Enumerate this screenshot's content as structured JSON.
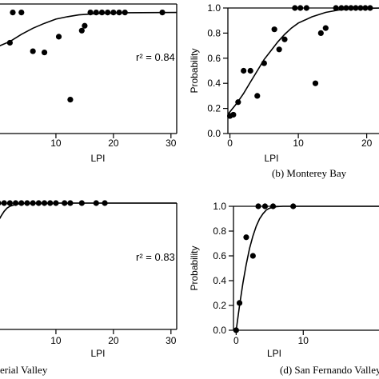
{
  "colors": {
    "ink": "#000000",
    "background": "#ffffff"
  },
  "chart_data": [
    {
      "type": "scatter",
      "panel": "a",
      "caption": "",
      "xlabel": "LPI",
      "ylabel": "",
      "x_ticks": [
        "10",
        "20",
        "30"
      ],
      "y_ticks": [],
      "xlim": [
        0,
        31
      ],
      "ylim": [
        0,
        1.07
      ],
      "annotation": "r² = 0.84",
      "points": [
        {
          "x": -0.5,
          "y": 0.78
        },
        {
          "x": 2.5,
          "y": 1.0
        },
        {
          "x": 4,
          "y": 1.0
        },
        {
          "x": 2,
          "y": 0.75
        },
        {
          "x": 6,
          "y": 0.68
        },
        {
          "x": 8,
          "y": 0.67
        },
        {
          "x": 10.5,
          "y": 0.8
        },
        {
          "x": 12.5,
          "y": 0.28
        },
        {
          "x": 14.5,
          "y": 0.85
        },
        {
          "x": 15,
          "y": 0.89
        },
        {
          "x": 16,
          "y": 1.0
        },
        {
          "x": 17,
          "y": 1.0
        },
        {
          "x": 18,
          "y": 1.0
        },
        {
          "x": 19,
          "y": 1.0
        },
        {
          "x": 20,
          "y": 1.0
        },
        {
          "x": 21,
          "y": 1.0
        },
        {
          "x": 22,
          "y": 1.0
        },
        {
          "x": 28.5,
          "y": 1.0
        }
      ],
      "fit": [
        {
          "x": -1,
          "y": 0.7
        },
        {
          "x": 2,
          "y": 0.76
        },
        {
          "x": 4,
          "y": 0.82
        },
        {
          "x": 6,
          "y": 0.87
        },
        {
          "x": 8,
          "y": 0.91
        },
        {
          "x": 10,
          "y": 0.945
        },
        {
          "x": 12,
          "y": 0.965
        },
        {
          "x": 14,
          "y": 0.98
        },
        {
          "x": 17,
          "y": 0.99
        },
        {
          "x": 22,
          "y": 0.998
        },
        {
          "x": 31,
          "y": 1.0
        }
      ]
    },
    {
      "type": "scatter",
      "panel": "b",
      "caption": "(b) Monterey Bay",
      "xlabel": "LPI",
      "ylabel": "Probability",
      "x_ticks": [
        "0",
        "10",
        "20"
      ],
      "y_ticks": [
        "0.0",
        "0.2",
        "0.4",
        "0.6",
        "0.8",
        "1.0"
      ],
      "xlim": [
        -0.3,
        22.5
      ],
      "ylim": [
        0,
        1.0
      ],
      "annotation": "",
      "points": [
        {
          "x": 0,
          "y": 0.14
        },
        {
          "x": 0.5,
          "y": 0.15
        },
        {
          "x": 1.2,
          "y": 0.25
        },
        {
          "x": 2,
          "y": 0.5
        },
        {
          "x": 3,
          "y": 0.5
        },
        {
          "x": 4,
          "y": 0.3
        },
        {
          "x": 5,
          "y": 0.56
        },
        {
          "x": 6.5,
          "y": 0.83
        },
        {
          "x": 7.2,
          "y": 0.67
        },
        {
          "x": 8,
          "y": 0.75
        },
        {
          "x": 9.5,
          "y": 1.0
        },
        {
          "x": 10.3,
          "y": 1.0
        },
        {
          "x": 11.2,
          "y": 1.0
        },
        {
          "x": 12.5,
          "y": 0.4
        },
        {
          "x": 13.3,
          "y": 0.8
        },
        {
          "x": 14,
          "y": 0.84
        },
        {
          "x": 15.5,
          "y": 1.0
        },
        {
          "x": 16.3,
          "y": 1.0
        },
        {
          "x": 17,
          "y": 1.0
        },
        {
          "x": 17.7,
          "y": 1.0
        },
        {
          "x": 18.4,
          "y": 1.0
        },
        {
          "x": 19.1,
          "y": 1.0
        },
        {
          "x": 19.8,
          "y": 1.0
        },
        {
          "x": 20.5,
          "y": 1.0
        }
      ],
      "fit": [
        {
          "x": -0.2,
          "y": 0.16
        },
        {
          "x": 1,
          "y": 0.24
        },
        {
          "x": 2,
          "y": 0.32
        },
        {
          "x": 3,
          "y": 0.41
        },
        {
          "x": 4,
          "y": 0.5
        },
        {
          "x": 5,
          "y": 0.59
        },
        {
          "x": 6,
          "y": 0.66
        },
        {
          "x": 7,
          "y": 0.73
        },
        {
          "x": 8,
          "y": 0.79
        },
        {
          "x": 9,
          "y": 0.84
        },
        {
          "x": 10,
          "y": 0.88
        },
        {
          "x": 12,
          "y": 0.93
        },
        {
          "x": 14,
          "y": 0.965
        },
        {
          "x": 16,
          "y": 0.985
        },
        {
          "x": 18,
          "y": 0.995
        },
        {
          "x": 22.5,
          "y": 1.0
        }
      ]
    },
    {
      "type": "scatter",
      "panel": "c",
      "caption": "erial Valley",
      "xlabel": "LPI",
      "ylabel": "",
      "x_ticks": [
        "10",
        "20",
        "30"
      ],
      "y_ticks": [],
      "xlim": [
        0,
        31
      ],
      "ylim": [
        0,
        1.0
      ],
      "annotation": "r² = 0.83",
      "points": [
        {
          "x": 0,
          "y": 1.0
        },
        {
          "x": 1,
          "y": 1.0
        },
        {
          "x": 2,
          "y": 1.0
        },
        {
          "x": 3,
          "y": 1.0
        },
        {
          "x": 4,
          "y": 1.0
        },
        {
          "x": 5,
          "y": 1.0
        },
        {
          "x": 6,
          "y": 1.0
        },
        {
          "x": 7,
          "y": 1.0
        },
        {
          "x": 8,
          "y": 1.0
        },
        {
          "x": 9,
          "y": 1.0
        },
        {
          "x": 10,
          "y": 1.0
        },
        {
          "x": 11.5,
          "y": 1.0
        },
        {
          "x": 12.5,
          "y": 1.0
        },
        {
          "x": 14.5,
          "y": 1.0
        },
        {
          "x": 17,
          "y": 1.0
        },
        {
          "x": 18.5,
          "y": 1.0
        }
      ],
      "fit": [
        {
          "x": 0,
          "y": 0.86
        },
        {
          "x": 0.5,
          "y": 0.9
        },
        {
          "x": 1,
          "y": 0.935
        },
        {
          "x": 1.5,
          "y": 0.96
        },
        {
          "x": 2,
          "y": 0.975
        },
        {
          "x": 3,
          "y": 0.99
        },
        {
          "x": 4,
          "y": 0.997
        },
        {
          "x": 6,
          "y": 1.0
        },
        {
          "x": 31,
          "y": 1.0
        }
      ]
    },
    {
      "type": "scatter",
      "panel": "d",
      "caption": "(d) San Fernando Valley",
      "xlabel": "LPI",
      "ylabel": "Probability",
      "x_ticks": [
        "0",
        "10"
      ],
      "y_ticks": [
        "0.0",
        "0.2",
        "0.4",
        "0.6",
        "0.8",
        "1.0"
      ],
      "xlim": [
        -0.4,
        22
      ],
      "ylim": [
        0,
        1.0
      ],
      "annotation": "",
      "points": [
        {
          "x": 0,
          "y": 0.0
        },
        {
          "x": 0.5,
          "y": 0.22
        },
        {
          "x": 1.5,
          "y": 0.75
        },
        {
          "x": 2.5,
          "y": 0.6
        },
        {
          "x": 3.3,
          "y": 1.0
        },
        {
          "x": 4.3,
          "y": 1.0
        },
        {
          "x": 5.5,
          "y": 1.0
        },
        {
          "x": 8.5,
          "y": 1.0
        }
      ],
      "fit": [
        {
          "x": 0,
          "y": 0.0
        },
        {
          "x": 0.5,
          "y": 0.2
        },
        {
          "x": 1,
          "y": 0.38
        },
        {
          "x": 1.5,
          "y": 0.53
        },
        {
          "x": 2,
          "y": 0.66
        },
        {
          "x": 2.5,
          "y": 0.76
        },
        {
          "x": 3,
          "y": 0.84
        },
        {
          "x": 3.5,
          "y": 0.9
        },
        {
          "x": 4,
          "y": 0.94
        },
        {
          "x": 4.5,
          "y": 0.97
        },
        {
          "x": 5,
          "y": 0.985
        },
        {
          "x": 6,
          "y": 0.997
        },
        {
          "x": 7,
          "y": 1.0
        },
        {
          "x": 22,
          "y": 1.0
        }
      ]
    }
  ]
}
